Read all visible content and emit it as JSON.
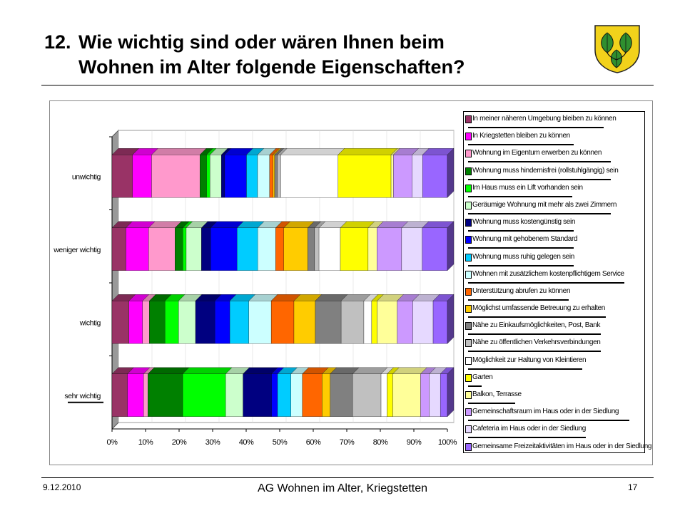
{
  "slide": {
    "title_number": "12.",
    "title_line1": "Wie wichtig sind oder wären Ihnen beim",
    "title_line2": "Wohnen im Alter folgende Eigenschaften?",
    "crest_icon": "municipal-crest-linden-leaves",
    "footer_date": "9.12.2010",
    "footer_center": "AG Wohnen im Alter, Kriegstetten",
    "page_number": "17"
  },
  "chart_data": {
    "type": "bar",
    "orientation": "horizontal",
    "stacked": "percent",
    "three_d": true,
    "categories": [
      "unwichtig",
      "weniger wichtig",
      "wichtig",
      "sehr wichtig"
    ],
    "x_ticks": [
      "0%",
      "10%",
      "20%",
      "30%",
      "40%",
      "50%",
      "60%",
      "70%",
      "80%",
      "90%",
      "100%"
    ],
    "xlim": [
      0,
      100
    ],
    "legend_position": "right",
    "underlined_categories": [
      "sehr wichtig"
    ],
    "series": [
      {
        "name": "In meiner näheren Umgebung bleiben zu können",
        "color": "#993366",
        "values": [
          6.1,
          4.1,
          5.0,
          4.6
        ],
        "underline": 0.81
      },
      {
        "name": "In Kriegstetten bleiben zu können",
        "color": "#ff00ff",
        "values": [
          5.7,
          6.7,
          4.0,
          4.8
        ],
        "underline": 0.63
      },
      {
        "name": "Wohnung im Eigentum erwerben zu können",
        "color": "#ff99cc",
        "values": [
          14.4,
          7.8,
          2.0,
          1.3
        ],
        "underline": 0.85
      },
      {
        "name": "Wohnung muss hindernisfrei (rollstuhlgängig) sein",
        "color": "#008000",
        "values": [
          2.0,
          2.3,
          4.6,
          10.4
        ],
        "underline": 0.85
      },
      {
        "name": "Im Haus muss ein Lift vorhanden sein",
        "color": "#00ff00",
        "values": [
          1.0,
          1.0,
          4.0,
          12.8
        ],
        "underline": 0.62
      },
      {
        "name": "Geräumige Wohnung mit mehr als zwei Zimmern",
        "color": "#ccffcc",
        "values": [
          3.4,
          4.5,
          5.0,
          5.2
        ],
        "underline": 0.85
      },
      {
        "name": "Wohnung muss kostengünstig sein",
        "color": "#000080",
        "values": [
          1.0,
          2.7,
          5.7,
          8.5
        ],
        "underline": 0.63
      },
      {
        "name": "Wohnung mit gehobenem Standard",
        "color": "#0000ff",
        "values": [
          6.5,
          7.8,
          4.4,
          1.8
        ],
        "underline": 0.63
      },
      {
        "name": "Wohnung muss ruhig gelegen sein",
        "color": "#00ccff",
        "values": [
          3.3,
          6.1,
          5.6,
          4.0
        ],
        "underline": 0.63
      },
      {
        "name": "Wohnen mit zusätzlichem kostenpflichtigem Service",
        "color": "#ccffff",
        "values": [
          3.6,
          5.3,
          6.6,
          3.4
        ],
        "underline": 0.93
      },
      {
        "name": "Unterstützung abrufen zu können",
        "color": "#ff6600",
        "values": [
          1.0,
          2.4,
          6.7,
          5.9
        ],
        "underline": 0.6
      },
      {
        "name": "Möglichst umfassende Betreuung zu erhalten",
        "color": "#ffcc00",
        "values": [
          0.5,
          7.1,
          6.3,
          2.4
        ],
        "underline": 0.82
      },
      {
        "name": "Nähe zu Einkaufsmöglichkeiten, Post, Bank",
        "color": "#808080",
        "values": [
          0.8,
          2.0,
          7.6,
          6.7
        ],
        "underline": 0.79
      },
      {
        "name": "Nähe zu öffentlichen Verkehrsverbindungen",
        "color": "#c0c0c0",
        "values": [
          1.0,
          1.3,
          6.7,
          8.5
        ],
        "underline": 0.79
      },
      {
        "name": "Möglichkeit zur Haltung von Kleintieren",
        "color": "#ffffff",
        "values": [
          17.1,
          6.3,
          2.3,
          1.8
        ],
        "underline": 0.68
      },
      {
        "name": "Garten",
        "color": "#ffff00",
        "values": [
          15.8,
          8.2,
          1.6,
          1.7
        ],
        "underline": 0.08
      },
      {
        "name": "Balkon, Terrasse",
        "color": "#ffff99",
        "values": [
          0.7,
          2.6,
          5.9,
          8.3
        ],
        "underline": 0.28
      },
      {
        "name": "Gemeinschaftsraum im Haus oder in der Siedlung",
        "color": "#cc99ff",
        "values": [
          5.6,
          7.3,
          4.6,
          2.6
        ],
        "underline": 0.96
      },
      {
        "name": "Cafeteria im Haus oder in der Siedlung",
        "color": "#e6d9ff",
        "values": [
          3.1,
          6.1,
          6.0,
          3.3
        ],
        "underline": 0.7
      },
      {
        "name": "Gemeinsame Freizeitaktivitäten im Haus oder in der Siedlung",
        "color": "#9966ff",
        "values": [
          7.4,
          7.4,
          4.2,
          2.1
        ],
        "underline": 0
      }
    ]
  }
}
